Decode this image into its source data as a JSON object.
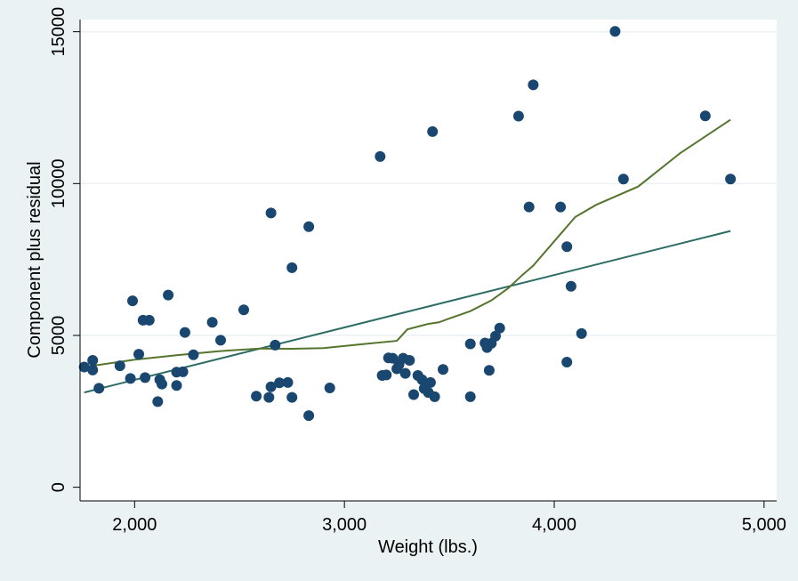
{
  "chart_data": {
    "type": "scatter",
    "title": "",
    "xlabel": "Weight (lbs.)",
    "ylabel": "Component plus residual",
    "xlim": [
      1740,
      5060
    ],
    "ylim": [
      -450,
      15400
    ],
    "x_ticks": [
      2000,
      3000,
      4000,
      5000
    ],
    "x_tick_labels": [
      "2,000",
      "3,000",
      "4,000",
      "5,000"
    ],
    "y_ticks": [
      0,
      5000,
      10000,
      15000
    ],
    "y_tick_labels": [
      "0",
      "5000",
      "10000",
      "15000"
    ],
    "grid": true,
    "legend": "none",
    "colors": {
      "background": "#eaf2f3",
      "plot_area": "#ffffff",
      "markers": "#1a476f",
      "linear_fit": "#2d6d66",
      "lowess": "#55752f",
      "grid": "#eaf2f3"
    },
    "series": [
      {
        "kind": "scatter",
        "points": [
          [
            1760,
            3960
          ],
          [
            1800,
            3860
          ],
          [
            1800,
            4180
          ],
          [
            1830,
            3260
          ],
          [
            1930,
            4000
          ],
          [
            1980,
            3580
          ],
          [
            1990,
            6140
          ],
          [
            2020,
            4380
          ],
          [
            2040,
            5500
          ],
          [
            2050,
            3610
          ],
          [
            2070,
            5500
          ],
          [
            2110,
            2820
          ],
          [
            2120,
            3540
          ],
          [
            2130,
            3400
          ],
          [
            2160,
            6330
          ],
          [
            2200,
            3790
          ],
          [
            2200,
            3350
          ],
          [
            2230,
            3800
          ],
          [
            2240,
            5100
          ],
          [
            2280,
            4360
          ],
          [
            2370,
            5430
          ],
          [
            2410,
            4840
          ],
          [
            2520,
            5840
          ],
          [
            2580,
            3000
          ],
          [
            2640,
            2960
          ],
          [
            2650,
            3310
          ],
          [
            2650,
            9030
          ],
          [
            2670,
            4680
          ],
          [
            2690,
            3440
          ],
          [
            2730,
            3450
          ],
          [
            2750,
            2960
          ],
          [
            2750,
            7230
          ],
          [
            2830,
            2360
          ],
          [
            2830,
            8580
          ],
          [
            2930,
            3270
          ],
          [
            3170,
            10890
          ],
          [
            3180,
            3680
          ],
          [
            3200,
            3700
          ],
          [
            3210,
            4260
          ],
          [
            3230,
            4250
          ],
          [
            3250,
            3900
          ],
          [
            3260,
            4040
          ],
          [
            3280,
            4250
          ],
          [
            3290,
            3750
          ],
          [
            3310,
            4180
          ],
          [
            3330,
            3050
          ],
          [
            3350,
            3680
          ],
          [
            3370,
            3540
          ],
          [
            3380,
            3250
          ],
          [
            3400,
            3120
          ],
          [
            3410,
            3450
          ],
          [
            3420,
            11710
          ],
          [
            3430,
            2980
          ],
          [
            3470,
            3880
          ],
          [
            3600,
            4720
          ],
          [
            3600,
            2980
          ],
          [
            3670,
            4750
          ],
          [
            3680,
            4600
          ],
          [
            3690,
            3850
          ],
          [
            3700,
            4740
          ],
          [
            3720,
            4980
          ],
          [
            3740,
            5240
          ],
          [
            3830,
            12220
          ],
          [
            3880,
            9230
          ],
          [
            3900,
            13250
          ],
          [
            4030,
            9230
          ],
          [
            4060,
            7920
          ],
          [
            4060,
            4120
          ],
          [
            4080,
            6620
          ],
          [
            4130,
            5060
          ],
          [
            4290,
            15010
          ],
          [
            4330,
            10150
          ],
          [
            4720,
            12230
          ],
          [
            4840,
            10150
          ]
        ]
      },
      {
        "kind": "line",
        "role": "linear_fit",
        "points": [
          [
            1760,
            3120
          ],
          [
            4840,
            8440
          ]
        ]
      },
      {
        "kind": "line",
        "role": "lowess",
        "points": [
          [
            1760,
            3960
          ],
          [
            1800,
            4000
          ],
          [
            2000,
            4200
          ],
          [
            2200,
            4350
          ],
          [
            2400,
            4480
          ],
          [
            2600,
            4570
          ],
          [
            2750,
            4560
          ],
          [
            2900,
            4580
          ],
          [
            3100,
            4720
          ],
          [
            3250,
            4820
          ],
          [
            3300,
            5200
          ],
          [
            3400,
            5380
          ],
          [
            3450,
            5430
          ],
          [
            3500,
            5560
          ],
          [
            3600,
            5800
          ],
          [
            3700,
            6150
          ],
          [
            3780,
            6550
          ],
          [
            3850,
            7000
          ],
          [
            3900,
            7300
          ],
          [
            4000,
            8100
          ],
          [
            4100,
            8900
          ],
          [
            4200,
            9300
          ],
          [
            4400,
            9900
          ],
          [
            4600,
            11000
          ],
          [
            4840,
            12100
          ]
        ]
      }
    ]
  }
}
